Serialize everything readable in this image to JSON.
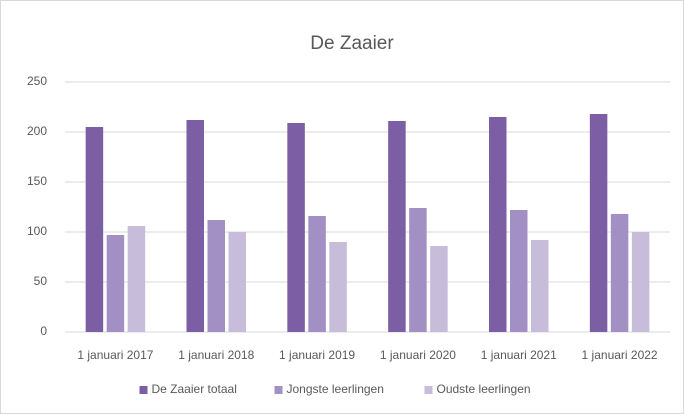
{
  "chart_data": {
    "type": "bar",
    "title": "De Zaaier",
    "categories": [
      "1 januari 2017",
      "1 januari 2018",
      "1 januari 2019",
      "1 januari 2020",
      "1 januari 2021",
      "1 januari 2022"
    ],
    "series": [
      {
        "name": "De Zaaier totaal",
        "color": "#7b5ea3",
        "values": [
          205,
          212,
          209,
          211,
          215,
          218
        ]
      },
      {
        "name": "Jongste leerlingen",
        "color": "#a28fc4",
        "values": [
          97,
          112,
          116,
          124,
          122,
          118
        ]
      },
      {
        "name": "Oudste leerlingen",
        "color": "#c7bddb",
        "values": [
          106,
          100,
          90,
          86,
          92,
          100
        ]
      }
    ],
    "ylim": [
      0,
      250
    ],
    "yticks": [
      0,
      50,
      100,
      150,
      200,
      250
    ],
    "grid": true,
    "legend": "bottom"
  }
}
